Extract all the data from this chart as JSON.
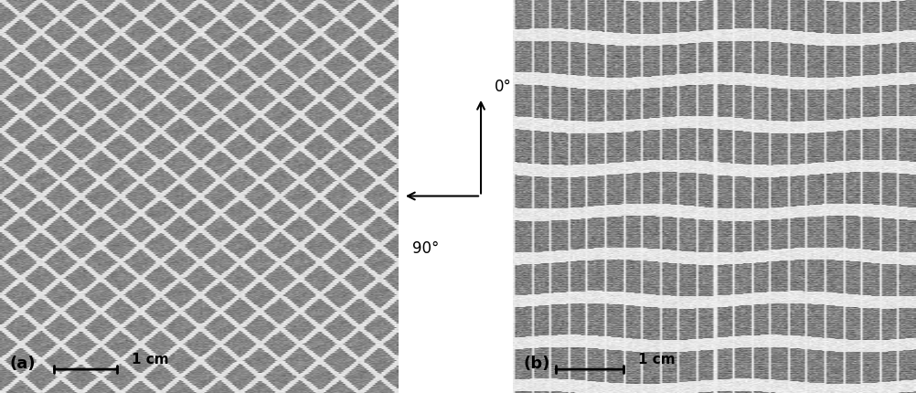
{
  "fig_width": 10.02,
  "fig_height": 4.31,
  "dpi": 100,
  "background_color": "#ffffff",
  "label_a": "(a)",
  "label_b": "(b)",
  "arrow_0deg_label": "0°",
  "arrow_90deg_label": "90°",
  "scale_bar_label": "1 cm"
}
